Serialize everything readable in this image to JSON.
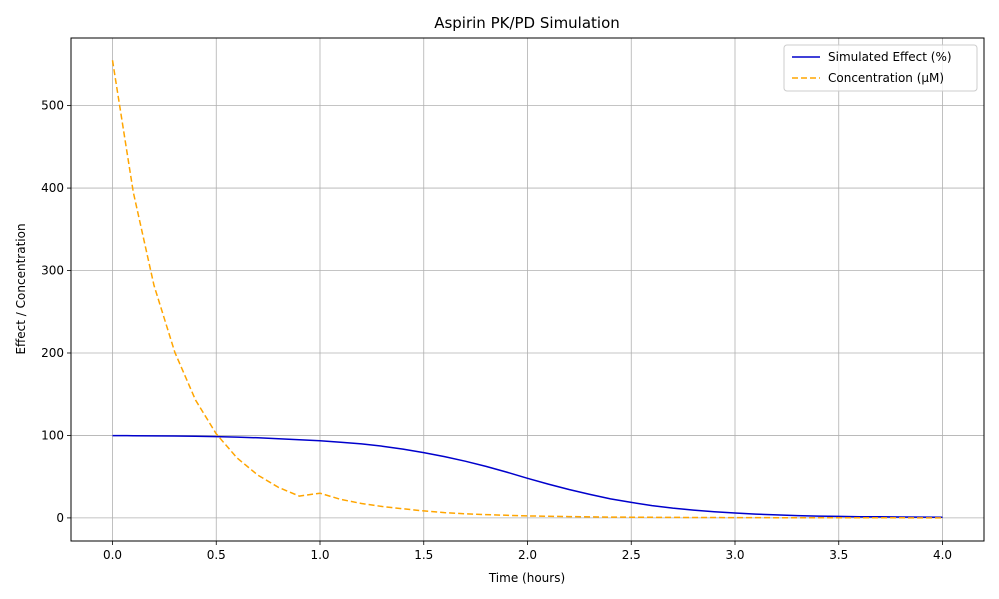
{
  "chart_data": {
    "type": "line",
    "title": "Aspirin PK/PD Simulation",
    "xlabel": "Time (hours)",
    "ylabel": "Effect / Concentration",
    "xlim": [
      -0.2,
      4.2
    ],
    "ylim": [
      -28,
      582
    ],
    "xticks": [
      0.0,
      0.5,
      1.0,
      1.5,
      2.0,
      2.5,
      3.0,
      3.5,
      4.0
    ],
    "xtick_labels": [
      "0.0",
      "0.5",
      "1.0",
      "1.5",
      "2.0",
      "2.5",
      "3.0",
      "3.5",
      "4.0"
    ],
    "yticks": [
      0,
      100,
      200,
      300,
      400,
      500
    ],
    "ytick_labels": [
      "0",
      "100",
      "200",
      "300",
      "400",
      "500"
    ],
    "grid": true,
    "legend_position": "top-right",
    "series": [
      {
        "name": "Simulated Effect (%)",
        "color": "#0000cc",
        "style": "solid",
        "x": [
          0.0,
          0.1,
          0.2,
          0.3,
          0.4,
          0.5,
          0.6,
          0.7,
          0.8,
          0.9,
          1.0,
          1.1,
          1.2,
          1.3,
          1.4,
          1.5,
          1.6,
          1.7,
          1.8,
          1.9,
          2.0,
          2.1,
          2.2,
          2.3,
          2.4,
          2.5,
          2.6,
          2.7,
          2.8,
          2.9,
          3.0,
          3.1,
          3.2,
          3.3,
          3.4,
          3.5,
          3.6,
          3.7,
          3.8,
          3.9,
          4.0
        ],
        "y": [
          99.8,
          99.7,
          99.5,
          99.3,
          99.0,
          98.6,
          98.0,
          97.2,
          96.1,
          94.9,
          93.5,
          91.8,
          89.7,
          87.0,
          83.5,
          79.2,
          74.3,
          68.8,
          62.5,
          55.5,
          48.0,
          41.0,
          34.5,
          28.5,
          23.0,
          18.8,
          14.9,
          11.9,
          9.5,
          7.5,
          5.9,
          4.6,
          3.6,
          2.8,
          2.2,
          1.8,
          1.5,
          1.3,
          1.1,
          1.0,
          0.9
        ]
      },
      {
        "name": "Concentration (μM)",
        "color": "#ffa500",
        "style": "dashed",
        "x": [
          0.0,
          0.1,
          0.2,
          0.3,
          0.4,
          0.5,
          0.6,
          0.7,
          0.8,
          0.9,
          1.0,
          1.1,
          1.2,
          1.3,
          1.4,
          1.5,
          1.6,
          1.7,
          1.8,
          1.9,
          2.0,
          2.2,
          2.4,
          2.6,
          2.8,
          3.0,
          3.2,
          3.4,
          3.6,
          3.8,
          4.0
        ],
        "y": [
          555,
          395,
          282,
          201,
          143,
          102,
          72.8,
          51.9,
          37.0,
          26.4,
          30.0,
          22.5,
          17.5,
          13.8,
          11.0,
          8.5,
          6.5,
          5.0,
          4.0,
          3.2,
          2.5,
          1.6,
          1.0,
          0.7,
          0.5,
          0.35,
          0.25,
          0.18,
          0.12,
          0.08,
          0.05
        ]
      }
    ]
  }
}
